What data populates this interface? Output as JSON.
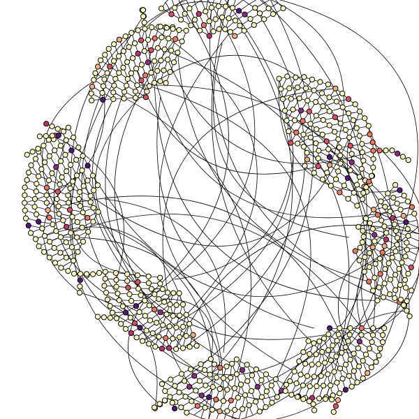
{
  "graph": {
    "layout": "radial-spiral",
    "background": "#ffffff",
    "edge_color": "#000000",
    "node_stroke": "#000000",
    "node_palette": {
      "default": "#ffffc0",
      "light_orange": "#fcb07c",
      "orange": "#f8765c",
      "red": "#e24d65",
      "magenta": "#c12f71",
      "purple": "#8c2981",
      "dark_purple": "#50147a"
    },
    "clusters": 5,
    "rings_per_cluster": 6,
    "cross_cluster_links": 70,
    "has_labels": false,
    "has_legend": false
  }
}
